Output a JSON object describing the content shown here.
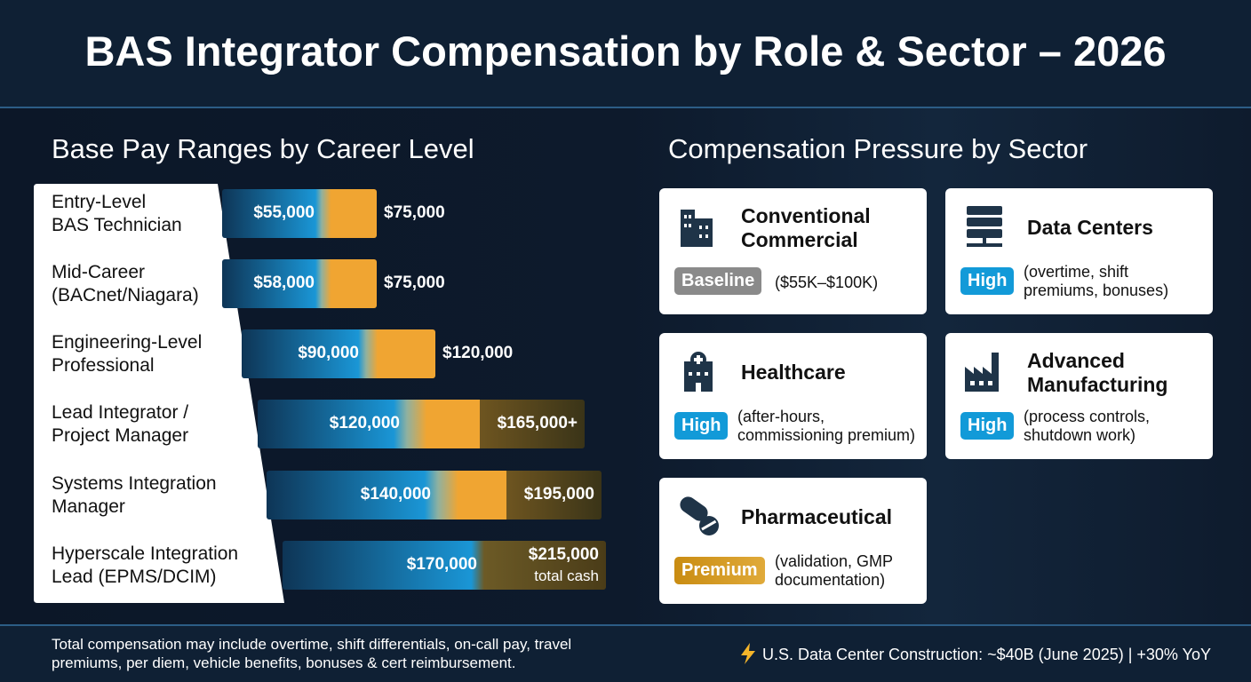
{
  "header": {
    "title": "BAS Integrator Compensation by Role & Sector – 2026"
  },
  "left": {
    "heading": "Base Pay Ranges by Career Level",
    "rows": [
      {
        "label": [
          "Entry-Level",
          "BAS Technician"
        ],
        "low": "$55,000",
        "high": "$75,000"
      },
      {
        "label": [
          "Mid-Career",
          "(BACnet/Niagara)"
        ],
        "low": "$58,000",
        "high": "$75,000"
      },
      {
        "label": [
          "Engineering-Level",
          "Professional"
        ],
        "low": "$90,000",
        "high": "$120,000"
      },
      {
        "label": [
          "Lead Integrator /",
          "Project Manager"
        ],
        "low": "$120,000",
        "high": "$165,000+"
      },
      {
        "label": [
          "Systems Integration",
          "Manager"
        ],
        "low": "$140,000",
        "high": "$195,000"
      },
      {
        "label": [
          "Hyperscale Integration",
          "Lead (EPMS/DCIM)"
        ],
        "low": "$170,000",
        "high": "$215,000",
        "note": "total cash"
      }
    ]
  },
  "right": {
    "heading": "Compensation Pressure by Sector",
    "cards": [
      {
        "title": "Conventional Commercial",
        "badge": "Baseline",
        "note": "($55K–$100K)"
      },
      {
        "title": "Data Centers",
        "badge": "High",
        "note": "(overtime, shift premiums, bonuses)"
      },
      {
        "title": "Healthcare",
        "badge": "High",
        "note": "(after-hours, commissioning premium)"
      },
      {
        "title": "Advanced Manufacturing",
        "badge": "High",
        "note": "(process controls, shutdown work)"
      },
      {
        "title": "Pharmaceutical",
        "badge": "Premium",
        "note": "(validation, GMP documentation)"
      }
    ]
  },
  "footer": {
    "left": "Total compensation may include overtime, shift differentials, on-call pay, travel premiums, per diem, vehicle benefits, bonuses & cert reimbursement.",
    "right": "U.S. Data Center Construction: ~$40B (June 2025) | +30% YoY"
  }
}
